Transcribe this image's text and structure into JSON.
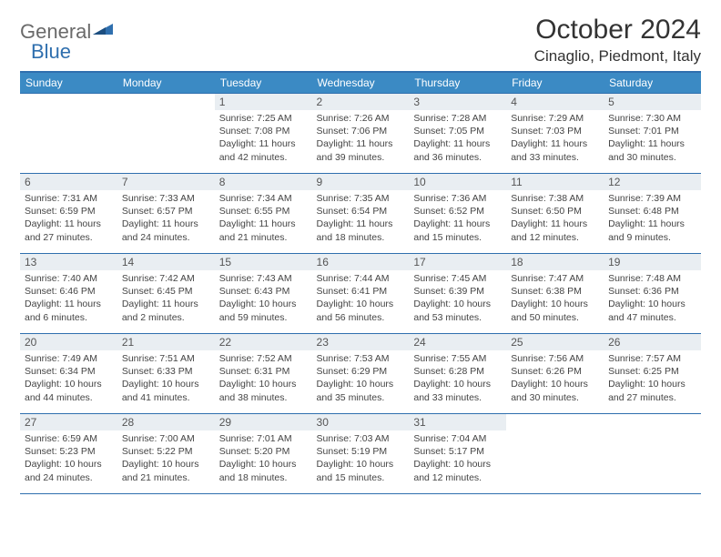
{
  "brand": {
    "part1": "General",
    "part2": "Blue"
  },
  "title": "October 2024",
  "location": "Cinaglio, Piedmont, Italy",
  "colors": {
    "header_bg": "#3b8ac4",
    "border": "#2f6fae",
    "daynum_bg": "#e9eef2",
    "text": "#333333",
    "logo_gray": "#6a6a6a"
  },
  "weekdays": [
    "Sunday",
    "Monday",
    "Tuesday",
    "Wednesday",
    "Thursday",
    "Friday",
    "Saturday"
  ],
  "weeks": [
    [
      null,
      null,
      {
        "n": "1",
        "sr": "7:25 AM",
        "ss": "7:08 PM",
        "dl": "11 hours and 42 minutes."
      },
      {
        "n": "2",
        "sr": "7:26 AM",
        "ss": "7:06 PM",
        "dl": "11 hours and 39 minutes."
      },
      {
        "n": "3",
        "sr": "7:28 AM",
        "ss": "7:05 PM",
        "dl": "11 hours and 36 minutes."
      },
      {
        "n": "4",
        "sr": "7:29 AM",
        "ss": "7:03 PM",
        "dl": "11 hours and 33 minutes."
      },
      {
        "n": "5",
        "sr": "7:30 AM",
        "ss": "7:01 PM",
        "dl": "11 hours and 30 minutes."
      }
    ],
    [
      {
        "n": "6",
        "sr": "7:31 AM",
        "ss": "6:59 PM",
        "dl": "11 hours and 27 minutes."
      },
      {
        "n": "7",
        "sr": "7:33 AM",
        "ss": "6:57 PM",
        "dl": "11 hours and 24 minutes."
      },
      {
        "n": "8",
        "sr": "7:34 AM",
        "ss": "6:55 PM",
        "dl": "11 hours and 21 minutes."
      },
      {
        "n": "9",
        "sr": "7:35 AM",
        "ss": "6:54 PM",
        "dl": "11 hours and 18 minutes."
      },
      {
        "n": "10",
        "sr": "7:36 AM",
        "ss": "6:52 PM",
        "dl": "11 hours and 15 minutes."
      },
      {
        "n": "11",
        "sr": "7:38 AM",
        "ss": "6:50 PM",
        "dl": "11 hours and 12 minutes."
      },
      {
        "n": "12",
        "sr": "7:39 AM",
        "ss": "6:48 PM",
        "dl": "11 hours and 9 minutes."
      }
    ],
    [
      {
        "n": "13",
        "sr": "7:40 AM",
        "ss": "6:46 PM",
        "dl": "11 hours and 6 minutes."
      },
      {
        "n": "14",
        "sr": "7:42 AM",
        "ss": "6:45 PM",
        "dl": "11 hours and 2 minutes."
      },
      {
        "n": "15",
        "sr": "7:43 AM",
        "ss": "6:43 PM",
        "dl": "10 hours and 59 minutes."
      },
      {
        "n": "16",
        "sr": "7:44 AM",
        "ss": "6:41 PM",
        "dl": "10 hours and 56 minutes."
      },
      {
        "n": "17",
        "sr": "7:45 AM",
        "ss": "6:39 PM",
        "dl": "10 hours and 53 minutes."
      },
      {
        "n": "18",
        "sr": "7:47 AM",
        "ss": "6:38 PM",
        "dl": "10 hours and 50 minutes."
      },
      {
        "n": "19",
        "sr": "7:48 AM",
        "ss": "6:36 PM",
        "dl": "10 hours and 47 minutes."
      }
    ],
    [
      {
        "n": "20",
        "sr": "7:49 AM",
        "ss": "6:34 PM",
        "dl": "10 hours and 44 minutes."
      },
      {
        "n": "21",
        "sr": "7:51 AM",
        "ss": "6:33 PM",
        "dl": "10 hours and 41 minutes."
      },
      {
        "n": "22",
        "sr": "7:52 AM",
        "ss": "6:31 PM",
        "dl": "10 hours and 38 minutes."
      },
      {
        "n": "23",
        "sr": "7:53 AM",
        "ss": "6:29 PM",
        "dl": "10 hours and 35 minutes."
      },
      {
        "n": "24",
        "sr": "7:55 AM",
        "ss": "6:28 PM",
        "dl": "10 hours and 33 minutes."
      },
      {
        "n": "25",
        "sr": "7:56 AM",
        "ss": "6:26 PM",
        "dl": "10 hours and 30 minutes."
      },
      {
        "n": "26",
        "sr": "7:57 AM",
        "ss": "6:25 PM",
        "dl": "10 hours and 27 minutes."
      }
    ],
    [
      {
        "n": "27",
        "sr": "6:59 AM",
        "ss": "5:23 PM",
        "dl": "10 hours and 24 minutes."
      },
      {
        "n": "28",
        "sr": "7:00 AM",
        "ss": "5:22 PM",
        "dl": "10 hours and 21 minutes."
      },
      {
        "n": "29",
        "sr": "7:01 AM",
        "ss": "5:20 PM",
        "dl": "10 hours and 18 minutes."
      },
      {
        "n": "30",
        "sr": "7:03 AM",
        "ss": "5:19 PM",
        "dl": "10 hours and 15 minutes."
      },
      {
        "n": "31",
        "sr": "7:04 AM",
        "ss": "5:17 PM",
        "dl": "10 hours and 12 minutes."
      },
      null,
      null
    ]
  ],
  "labels": {
    "sunrise": "Sunrise: ",
    "sunset": "Sunset: ",
    "daylight": "Daylight: "
  }
}
